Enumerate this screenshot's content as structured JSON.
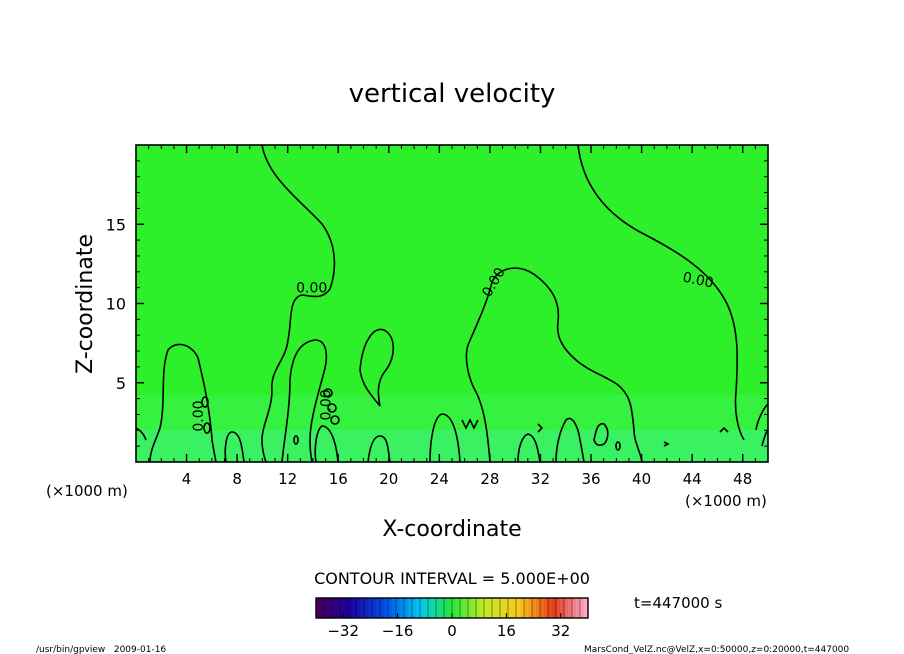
{
  "chart_data": {
    "type": "contour",
    "title": "vertical velocity",
    "xlabel": "X-coordinate",
    "ylabel": "Z-coordinate",
    "x_unit_left": "(×1000 m)",
    "x_unit_right": "(×1000 m)",
    "xlim": [
      0,
      50
    ],
    "ylim": [
      0,
      20
    ],
    "x_ticks": [
      4,
      8,
      12,
      16,
      20,
      24,
      28,
      32,
      36,
      40,
      44,
      48
    ],
    "y_ticks": [
      5,
      10,
      15
    ],
    "contour_labels": [
      {
        "text": "0.00",
        "x": 13.9,
        "z": 10.7
      },
      {
        "text": "0.00",
        "x": 28.6,
        "z": 11.2
      },
      {
        "text": "0.00",
        "x": 44.4,
        "z": 11.2
      },
      {
        "text": "0.00",
        "x": 5.3,
        "z": 2.9
      },
      {
        "text": "0.00",
        "x": 15.4,
        "z": 3.6
      }
    ],
    "contour_interval_text": "CONTOUR INTERVAL = 5.000E+00",
    "time_text": "t=447000 s",
    "colorbar": {
      "min": -40,
      "max": 40,
      "ticks": [
        -32,
        -16,
        0,
        16,
        32
      ],
      "tick_labels": [
        "−32",
        "−16",
        "0",
        "16",
        "32"
      ]
    },
    "fill_color": "#2ef02a"
  },
  "footer": {
    "left": "/usr/bin/gpview   2009-01-16",
    "right": "MarsCond_VelZ.nc@VelZ,x=0:50000,z=0:20000,t=447000"
  }
}
